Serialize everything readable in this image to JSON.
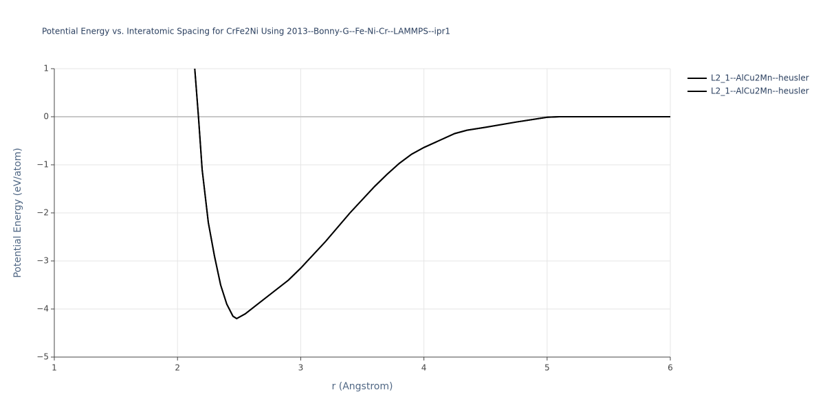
{
  "chart_data": {
    "type": "line",
    "title": "Potential Energy vs. Interatomic Spacing for CrFe2Ni Using 2013--Bonny-G--Fe-Ni-Cr--LAMMPS--ipr1",
    "x_label": "r (Angstrom)",
    "y_label": "Potential Energy (eV/atom)",
    "xlim": [
      1,
      6
    ],
    "ylim": [
      -5,
      1
    ],
    "xticks": [
      1,
      2,
      3,
      4,
      5,
      6
    ],
    "yticks": [
      {
        "value": -5,
        "label": "−5"
      },
      {
        "value": -4,
        "label": "−4"
      },
      {
        "value": -3,
        "label": "−3"
      },
      {
        "value": -2,
        "label": "−2"
      },
      {
        "value": -1,
        "label": "−1"
      },
      0,
      1
    ],
    "grid": true,
    "series": [
      {
        "name": "L2_1--AlCu2Mn--heusler",
        "color": "#000000",
        "x": [
          2.14,
          2.17,
          2.2,
          2.25,
          2.3,
          2.35,
          2.4,
          2.45,
          2.48,
          2.55,
          2.7,
          2.9,
          3.0,
          3.2,
          3.4,
          3.6,
          3.7,
          3.8,
          3.9,
          4.0,
          4.25,
          4.35,
          4.5,
          4.75,
          5.0,
          5.1,
          6.0
        ],
        "values": [
          1.0,
          0.0,
          -1.1,
          -2.2,
          -2.9,
          -3.5,
          -3.9,
          -4.15,
          -4.2,
          -4.1,
          -3.8,
          -3.4,
          -3.15,
          -2.6,
          -2.0,
          -1.45,
          -1.2,
          -0.97,
          -0.78,
          -0.64,
          -0.35,
          -0.28,
          -0.22,
          -0.11,
          -0.01,
          0.0,
          0.0
        ]
      },
      {
        "name": "L2_1--AlCu2Mn--heusler",
        "color": "#000000",
        "x": [
          2.14,
          2.17,
          2.2,
          2.25,
          2.3,
          2.35,
          2.4,
          2.45,
          2.48,
          2.55,
          2.7,
          2.9,
          3.0,
          3.2,
          3.4,
          3.6,
          3.7,
          3.8,
          3.9,
          4.0,
          4.25,
          4.35,
          4.5,
          4.75,
          5.0,
          5.1,
          6.0
        ],
        "values": [
          1.0,
          0.0,
          -1.1,
          -2.2,
          -2.9,
          -3.5,
          -3.9,
          -4.15,
          -4.2,
          -4.1,
          -3.8,
          -3.4,
          -3.15,
          -2.6,
          -2.0,
          -1.45,
          -1.2,
          -0.97,
          -0.78,
          -0.64,
          -0.35,
          -0.28,
          -0.22,
          -0.11,
          -0.01,
          0.0,
          0.0
        ]
      }
    ]
  }
}
